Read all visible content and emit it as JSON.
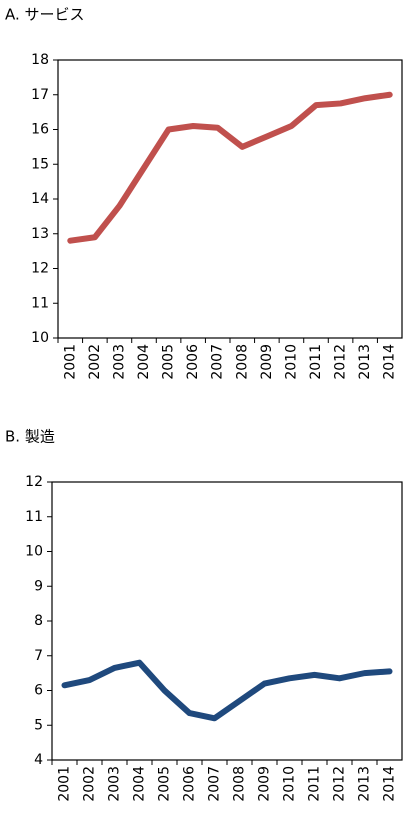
{
  "chart_data": [
    {
      "type": "line",
      "title": "A. サービス",
      "categories": [
        "2001",
        "2002",
        "2003",
        "2004",
        "2005",
        "2006",
        "2007",
        "2008",
        "2009",
        "2010",
        "2011",
        "2012",
        "2013",
        "2014"
      ],
      "series": [
        {
          "color": "#c0504d",
          "values": [
            12.8,
            12.9,
            13.8,
            14.9,
            16.0,
            16.1,
            16.05,
            15.5,
            15.8,
            16.1,
            16.7,
            16.75,
            16.9,
            17.0
          ]
        }
      ],
      "ylim": [
        10,
        18
      ],
      "yticks": [
        10,
        11,
        12,
        13,
        14,
        15,
        16,
        17,
        18
      ],
      "grid": false
    },
    {
      "type": "line",
      "title": "B. 製造",
      "categories": [
        "2001",
        "2002",
        "2003",
        "2004",
        "2005",
        "2006",
        "2007",
        "2008",
        "2009",
        "2010",
        "2011",
        "2012",
        "2013",
        "2014"
      ],
      "series": [
        {
          "color": "#1f497d",
          "values": [
            6.15,
            6.3,
            6.65,
            6.8,
            6.0,
            5.35,
            5.2,
            5.7,
            6.2,
            6.35,
            6.45,
            6.35,
            6.5,
            6.55
          ]
        }
      ],
      "ylim": [
        4,
        12
      ],
      "yticks": [
        4,
        5,
        6,
        7,
        8,
        9,
        10,
        11,
        12
      ],
      "grid": false
    }
  ]
}
